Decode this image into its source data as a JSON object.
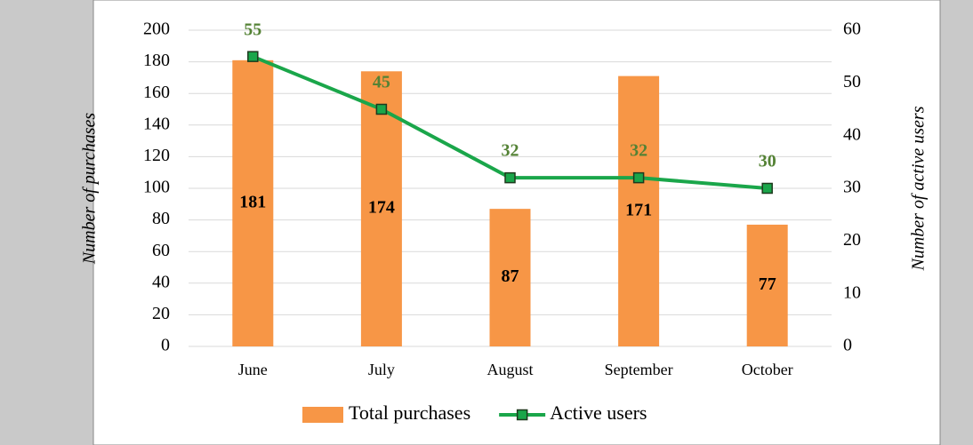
{
  "chart_data": {
    "type": "combo",
    "categories": [
      "June",
      "July",
      "August",
      "September",
      "October"
    ],
    "series": [
      {
        "name": "Total purchases",
        "type": "bar",
        "color": "#f79646",
        "values": [
          181,
          174,
          87,
          171,
          77
        ]
      },
      {
        "name": "Active users",
        "type": "line",
        "axis": "y2",
        "color": "#1aa64a",
        "values": [
          55,
          45,
          32,
          32,
          30
        ]
      }
    ],
    "ylabel": "Number of purchases",
    "y2label": "Number of active users",
    "ylim": [
      0,
      200
    ],
    "yticks": [
      0,
      20,
      40,
      60,
      80,
      100,
      120,
      140,
      160,
      180,
      200
    ],
    "y2lim": [
      0,
      60
    ],
    "y2ticks": [
      0,
      10,
      20,
      30,
      40,
      50,
      60
    ],
    "grid": true,
    "legend": "bottom"
  }
}
